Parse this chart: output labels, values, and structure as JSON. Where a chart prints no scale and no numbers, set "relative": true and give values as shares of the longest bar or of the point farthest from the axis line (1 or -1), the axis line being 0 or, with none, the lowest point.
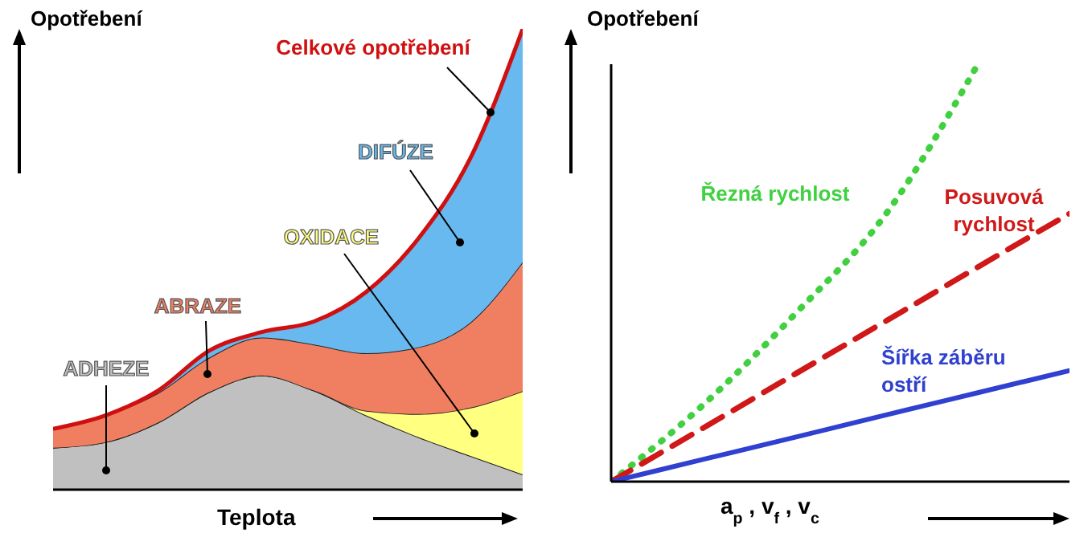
{
  "chart_data": [
    {
      "type": "area",
      "stacked": true,
      "relative": true,
      "xlabel": "Teplota",
      "ylabel": "Opotřebení",
      "legend": false,
      "categories": [
        null,
        null,
        null,
        null,
        null,
        null,
        null,
        null,
        null,
        null
      ],
      "series": [
        {
          "name": "ADHEZE",
          "color": "#c0c0c0",
          "values": [
            0.091,
            0.103,
            0.145,
            0.212,
            0.248,
            0.215,
            0.161,
            0.114,
            0.073,
            0.033
          ]
        },
        {
          "name": "OXIDACE",
          "color": "#ffff80",
          "values": [
            0,
            0,
            0,
            0,
            0,
            0,
            0.01,
            0.05,
            0.105,
            0.181
          ]
        },
        {
          "name": "ABRAZE",
          "color": "#f07f62",
          "values": [
            0.041,
            0.058,
            0.064,
            0.075,
            0.082,
            0.1,
            0.125,
            0.145,
            0.185,
            0.28
          ]
        },
        {
          "name": "DIFÚZE",
          "color": "#67b9ef",
          "values": [
            0,
            0,
            0.005,
            0.015,
            0.012,
            0.05,
            0.133,
            0.236,
            0.357,
            0.506
          ]
        }
      ],
      "annotations": [
        "Celkové opotřebení"
      ]
    },
    {
      "type": "line",
      "relative": true,
      "xlabel": "a$_{p}$ , v$_{f}$ , v$_{c}$",
      "ylabel": "Opotřebení",
      "legend": false,
      "categories": [
        null,
        null,
        null,
        null,
        null,
        null
      ],
      "series": [
        {
          "name": "Řezná rychlost",
          "color": "#40d040",
          "line_style": "dotted",
          "values": [
            0,
            0.183,
            0.4,
            0.642,
            1.0,
            null
          ]
        },
        {
          "name": "Posuvová rychlost",
          "color": "#d01818",
          "line_style": "dashed",
          "values": [
            0,
            0.128,
            0.257,
            0.385,
            0.514,
            0.642
          ]
        },
        {
          "name": "Šířka záběru ostří",
          "color": "#3040d0",
          "line_style": "solid",
          "values": [
            0,
            0.053,
            0.106,
            0.16,
            0.213,
            0.266
          ]
        }
      ]
    }
  ]
}
